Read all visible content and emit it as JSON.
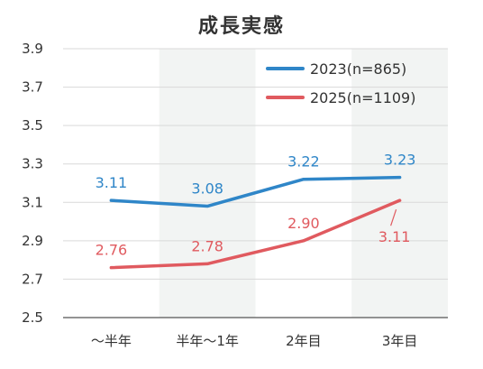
{
  "chart_data": {
    "type": "line",
    "title": "成長実感",
    "categories": [
      "〜半年",
      "半年〜1年",
      "2年目",
      "3年目"
    ],
    "ylim": [
      2.5,
      3.9
    ],
    "yticks": [
      "2.5",
      "2.7",
      "2.9",
      "3.1",
      "3.3",
      "3.5",
      "3.7",
      "3.9"
    ],
    "grid": "horizontal",
    "shaded_columns": [
      1,
      3
    ],
    "legend_position": "top-right",
    "series": [
      {
        "name": "2023(n=865)",
        "values": [
          3.11,
          3.08,
          3.22,
          3.23
        ],
        "labels": [
          "3.11",
          "3.08",
          "3.22",
          "3.23"
        ],
        "color": "#2f86c8"
      },
      {
        "name": "2025(n=1109)",
        "values": [
          2.76,
          2.78,
          2.9,
          3.11
        ],
        "labels": [
          "2.76",
          "2.78",
          "2.90",
          "3.11"
        ],
        "color": "#e05a5f"
      }
    ]
  },
  "colors": {
    "band": "#f2f4f3",
    "grid": "#d9d9d9",
    "axis": "#555555",
    "text": "#333333"
  }
}
